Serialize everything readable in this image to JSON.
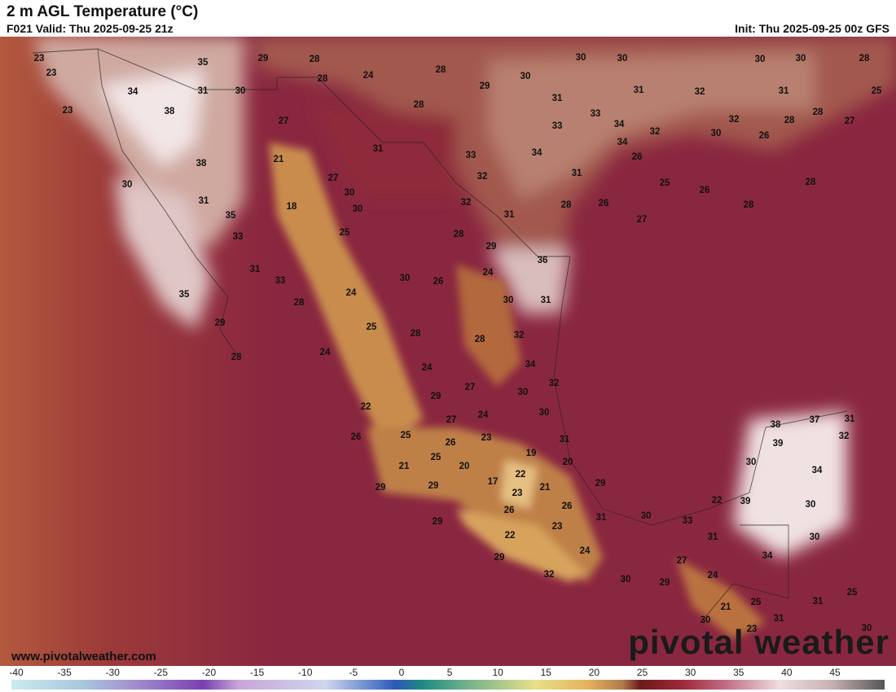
{
  "header": {
    "title": "2 m AGL Temperature (°C)",
    "valid": "F021 Valid: Thu 2025-09-25 21z",
    "init": "Init: Thu 2025-09-25 00z GFS"
  },
  "map": {
    "labels": [
      23,
      23,
      35,
      29,
      28,
      24,
      28,
      28,
      29,
      30,
      30,
      30,
      30,
      30,
      28,
      25,
      34,
      31,
      30,
      31,
      32,
      31,
      31,
      28,
      23,
      38,
      33,
      28,
      27,
      32,
      28,
      27,
      33,
      34,
      32,
      30,
      26,
      31,
      34,
      33,
      34,
      26,
      21,
      38,
      31,
      27,
      32,
      25,
      26,
      28,
      30,
      30,
      31,
      18,
      30,
      32,
      28,
      26,
      28,
      35,
      31,
      27,
      33,
      25,
      28,
      29,
      36,
      31,
      24,
      33,
      30,
      26,
      24,
      35,
      30,
      31,
      28,
      29,
      25,
      28,
      32,
      28,
      24,
      28,
      34,
      24,
      32,
      27,
      29,
      30,
      22,
      30,
      24,
      27,
      38,
      37,
      31,
      25,
      23,
      31,
      26,
      26,
      39,
      32,
      19,
      25,
      20,
      30,
      21,
      20,
      34,
      22,
      17,
      29,
      21,
      29,
      29,
      23,
      22,
      39,
      30,
      26,
      26,
      30,
      31,
      33,
      29,
      23,
      22,
      31,
      30,
      24,
      34,
      29,
      27,
      32,
      24,
      30,
      29,
      25,
      21,
      25,
      31,
      30,
      31,
      23,
      30
    ]
  },
  "footer": {
    "website": "www.pivotalweather.com",
    "logo": "pivotal weather"
  },
  "colorbar": {
    "ticks": [
      -40,
      -35,
      -30,
      -25,
      -20,
      -15,
      -10,
      -5,
      0,
      5,
      10,
      15,
      20,
      25,
      30,
      35,
      40,
      45
    ]
  }
}
